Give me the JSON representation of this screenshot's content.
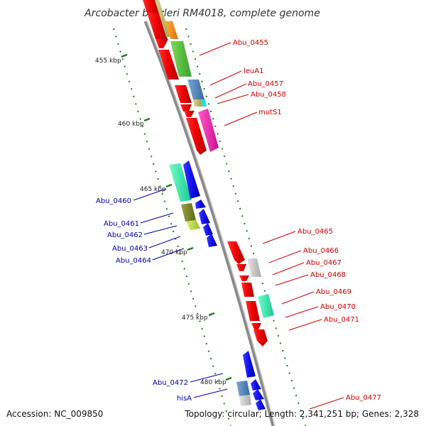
{
  "title": "Arcobacter butzleri RM4018, complete genome",
  "footer": {
    "accession": "Accession: NC_009850",
    "summary": "Topology: circular; Length: 2,341,251 bp; Genes: 2,328"
  },
  "colors": {
    "forward_label": "#cc0000",
    "reverse_label": "#0000aa",
    "backbone": "#8a8a8a",
    "tick": "#1f7a1f"
  },
  "ticks": [
    {
      "label": "455 kbp"
    },
    {
      "label": "460 kbp"
    },
    {
      "label": "465 kbp"
    },
    {
      "label": "470 kbp"
    },
    {
      "label": "475 kbp"
    },
    {
      "label": "480 kbp"
    }
  ],
  "forward_labels": [
    {
      "text": "Abu_0455"
    },
    {
      "text": "leuA1"
    },
    {
      "text": "Abu_0457"
    },
    {
      "text": "Abu_0458"
    },
    {
      "text": "mutS1"
    },
    {
      "text": "Abu_0465"
    },
    {
      "text": "Abu_0466"
    },
    {
      "text": "Abu_0467"
    },
    {
      "text": "Abu_0468"
    },
    {
      "text": "Abu_0469"
    },
    {
      "text": "Abu_0470"
    },
    {
      "text": "Abu_0471"
    },
    {
      "text": "Abu_0477"
    }
  ],
  "reverse_labels": [
    {
      "text": "Abu_0460"
    },
    {
      "text": "Abu_0461"
    },
    {
      "text": "Abu_0462"
    },
    {
      "text": "Abu_0463"
    },
    {
      "text": "Abu_0464"
    },
    {
      "text": "Abu_0472"
    },
    {
      "text": "hisA"
    }
  ]
}
